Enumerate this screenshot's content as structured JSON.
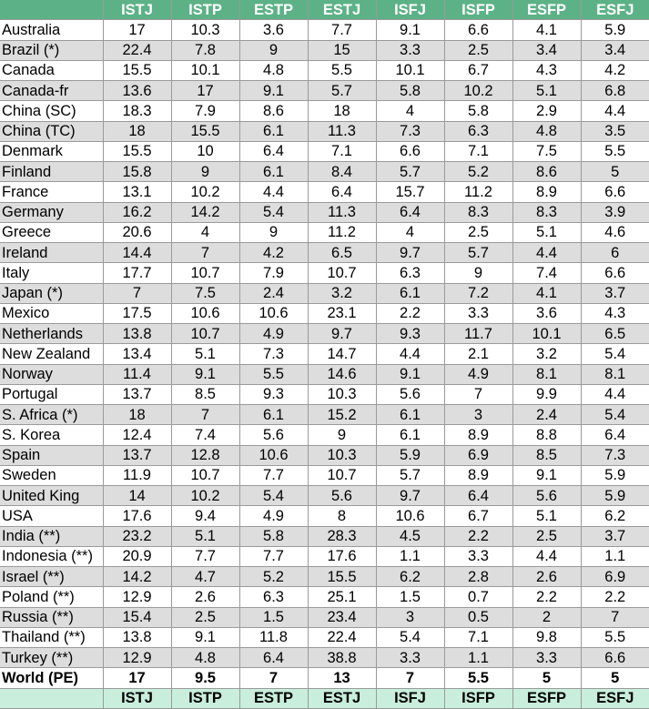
{
  "header": {
    "columns": [
      "",
      "ISTJ",
      "ISTP",
      "ESTP",
      "ESTJ",
      "ISFJ",
      "ISFP",
      "ESFP",
      "ESFJ"
    ]
  },
  "rows": [
    {
      "country": "Australia",
      "values": [
        "17",
        "10.3",
        "3.6",
        "7.7",
        "9.1",
        "6.6",
        "4.1",
        "5.9"
      ]
    },
    {
      "country": "Brazil (*)",
      "values": [
        "22.4",
        "7.8",
        "9",
        "15",
        "3.3",
        "2.5",
        "3.4",
        "3.4"
      ]
    },
    {
      "country": "Canada",
      "values": [
        "15.5",
        "10.1",
        "4.8",
        "5.5",
        "10.1",
        "6.7",
        "4.3",
        "4.2"
      ]
    },
    {
      "country": "Canada-fr",
      "values": [
        "13.6",
        "17",
        "9.1",
        "5.7",
        "5.8",
        "10.2",
        "5.1",
        "6.8"
      ]
    },
    {
      "country": "China (SC)",
      "values": [
        "18.3",
        "7.9",
        "8.6",
        "18",
        "4",
        "5.8",
        "2.9",
        "4.4"
      ]
    },
    {
      "country": "China (TC)",
      "values": [
        "18",
        "15.5",
        "6.1",
        "11.3",
        "7.3",
        "6.3",
        "4.8",
        "3.5"
      ]
    },
    {
      "country": "Denmark",
      "values": [
        "15.5",
        "10",
        "6.4",
        "7.1",
        "6.6",
        "7.1",
        "7.5",
        "5.5"
      ]
    },
    {
      "country": "Finland",
      "values": [
        "15.8",
        "9",
        "6.1",
        "8.4",
        "5.7",
        "5.2",
        "8.6",
        "5"
      ]
    },
    {
      "country": "France",
      "values": [
        "13.1",
        "10.2",
        "4.4",
        "6.4",
        "15.7",
        "11.2",
        "8.9",
        "6.6"
      ]
    },
    {
      "country": "Germany",
      "values": [
        "16.2",
        "14.2",
        "5.4",
        "11.3",
        "6.4",
        "8.3",
        "8.3",
        "3.9"
      ]
    },
    {
      "country": "Greece",
      "values": [
        "20.6",
        "4",
        "9",
        "11.2",
        "4",
        "2.5",
        "5.1",
        "4.6"
      ]
    },
    {
      "country": "Ireland",
      "values": [
        "14.4",
        "7",
        "4.2",
        "6.5",
        "9.7",
        "5.7",
        "4.4",
        "6"
      ]
    },
    {
      "country": "Italy",
      "values": [
        "17.7",
        "10.7",
        "7.9",
        "10.7",
        "6.3",
        "9",
        "7.4",
        "6.6"
      ]
    },
    {
      "country": "Japan (*)",
      "values": [
        "7",
        "7.5",
        "2.4",
        "3.2",
        "6.1",
        "7.2",
        "4.1",
        "3.7"
      ]
    },
    {
      "country": "Mexico",
      "values": [
        "17.5",
        "10.6",
        "10.6",
        "23.1",
        "2.2",
        "3.3",
        "3.6",
        "4.3"
      ]
    },
    {
      "country": "Netherlands",
      "values": [
        "13.8",
        "10.7",
        "4.9",
        "9.7",
        "9.3",
        "11.7",
        "10.1",
        "6.5"
      ]
    },
    {
      "country": "New Zealand",
      "values": [
        "13.4",
        "5.1",
        "7.3",
        "14.7",
        "4.4",
        "2.1",
        "3.2",
        "5.4"
      ]
    },
    {
      "country": "Norway",
      "values": [
        "11.4",
        "9.1",
        "5.5",
        "14.6",
        "9.1",
        "4.9",
        "8.1",
        "8.1"
      ]
    },
    {
      "country": "Portugal",
      "values": [
        "13.7",
        "8.5",
        "9.3",
        "10.3",
        "5.6",
        "7",
        "9.9",
        "4.4"
      ]
    },
    {
      "country": "S. Africa (*)",
      "values": [
        "18",
        "7",
        "6.1",
        "15.2",
        "6.1",
        "3",
        "2.4",
        "5.4"
      ]
    },
    {
      "country": "S. Korea",
      "values": [
        "12.4",
        "7.4",
        "5.6",
        "9",
        "6.1",
        "8.9",
        "8.8",
        "6.4"
      ]
    },
    {
      "country": "Spain",
      "values": [
        "13.7",
        "12.8",
        "10.6",
        "10.3",
        "5.9",
        "6.9",
        "8.5",
        "7.3"
      ]
    },
    {
      "country": "Sweden",
      "values": [
        "11.9",
        "10.7",
        "7.7",
        "10.7",
        "5.7",
        "8.9",
        "9.1",
        "5.9"
      ]
    },
    {
      "country": "United King",
      "values": [
        "14",
        "10.2",
        "5.4",
        "5.6",
        "9.7",
        "6.4",
        "5.6",
        "5.9"
      ]
    },
    {
      "country": "USA",
      "values": [
        "17.6",
        "9.4",
        "4.9",
        "8",
        "10.6",
        "6.7",
        "5.1",
        "6.2"
      ]
    },
    {
      "country": "India (**)",
      "values": [
        "23.2",
        "5.1",
        "5.8",
        "28.3",
        "4.5",
        "2.2",
        "2.5",
        "3.7"
      ]
    },
    {
      "country": "Indonesia (**)",
      "values": [
        "20.9",
        "7.7",
        "7.7",
        "17.6",
        "1.1",
        "3.3",
        "4.4",
        "1.1"
      ]
    },
    {
      "country": "Israel (**)",
      "values": [
        "14.2",
        "4.7",
        "5.2",
        "15.5",
        "6.2",
        "2.8",
        "2.6",
        "6.9"
      ]
    },
    {
      "country": "Poland (**)",
      "values": [
        "12.9",
        "2.6",
        "6.3",
        "25.1",
        "1.5",
        "0.7",
        "2.2",
        "2.2"
      ]
    },
    {
      "country": "Russia (**)",
      "values": [
        "15.4",
        "2.5",
        "1.5",
        "23.4",
        "3",
        "0.5",
        "2",
        "7"
      ]
    },
    {
      "country": "Thailand (**)",
      "values": [
        "13.8",
        "9.1",
        "11.8",
        "22.4",
        "5.4",
        "7.1",
        "9.8",
        "5.5"
      ]
    },
    {
      "country": "Turkey (**)",
      "values": [
        "12.9",
        "4.8",
        "6.4",
        "38.8",
        "3.3",
        "1.1",
        "3.3",
        "6.6"
      ]
    }
  ],
  "world": {
    "country": "World (PE)",
    "values": [
      "17",
      "9.5",
      "7",
      "13",
      "7",
      "5.5",
      "5",
      "5"
    ]
  },
  "footer": {
    "columns": [
      "",
      "ISTJ",
      "ISTP",
      "ESTP",
      "ESTJ",
      "ISFJ",
      "ISFP",
      "ESFP",
      "ESFJ"
    ]
  },
  "colors": {
    "header_bg": "#5cb286",
    "footer_bg": "#c9eedc",
    "stripe_bg": "#dddddd"
  }
}
